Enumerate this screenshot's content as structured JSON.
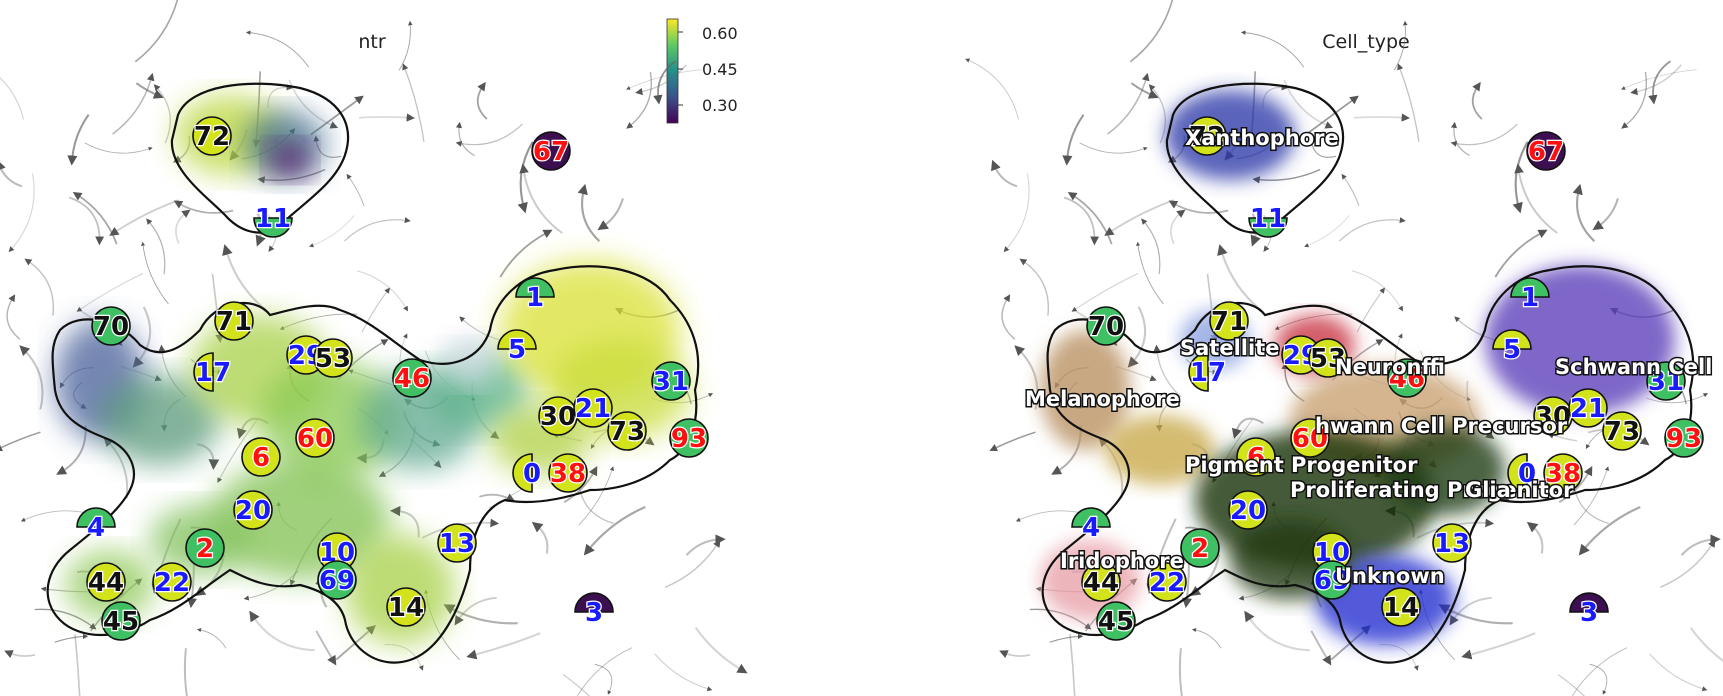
{
  "chart_data": [
    {
      "type": "scatter",
      "title": "ntr",
      "colorbar": {
        "ticks": [
          "0.60",
          "0.45",
          "0.30"
        ],
        "range": [
          0.25,
          0.63
        ]
      },
      "clusters": [
        {
          "id": "72",
          "ntr": 0.62
        },
        {
          "id": "11",
          "ntr": 0.45
        },
        {
          "id": "67",
          "ntr": 0.28
        },
        {
          "id": "1",
          "ntr": 0.45
        },
        {
          "id": "70",
          "ntr": 0.45
        },
        {
          "id": "71",
          "ntr": 0.6
        },
        {
          "id": "17",
          "ntr": 0.6
        },
        {
          "id": "29",
          "ntr": 0.45
        },
        {
          "id": "53",
          "ntr": 0.62
        },
        {
          "id": "46",
          "ntr": 0.45
        },
        {
          "id": "5",
          "ntr": 0.6
        },
        {
          "id": "31",
          "ntr": 0.45
        },
        {
          "id": "30",
          "ntr": 0.62
        },
        {
          "id": "21",
          "ntr": 0.6
        },
        {
          "id": "73",
          "ntr": 0.6
        },
        {
          "id": "93",
          "ntr": 0.45
        },
        {
          "id": "60",
          "ntr": 0.6
        },
        {
          "id": "6",
          "ntr": 0.6
        },
        {
          "id": "0",
          "ntr": 0.6
        },
        {
          "id": "38",
          "ntr": 0.62
        },
        {
          "id": "4",
          "ntr": 0.45
        },
        {
          "id": "20",
          "ntr": 0.6
        },
        {
          "id": "2",
          "ntr": 0.55
        },
        {
          "id": "10",
          "ntr": 0.6
        },
        {
          "id": "69",
          "ntr": 0.5
        },
        {
          "id": "13",
          "ntr": 0.6
        },
        {
          "id": "44",
          "ntr": 0.62
        },
        {
          "id": "22",
          "ntr": 0.6
        },
        {
          "id": "45",
          "ntr": 0.5
        },
        {
          "id": "14",
          "ntr": 0.62
        },
        {
          "id": "3",
          "ntr": 0.28
        }
      ]
    },
    {
      "type": "scatter",
      "title": "Cell_type",
      "cell_types": [
        {
          "name": "Xanthophore",
          "color": "#2b3aa8"
        },
        {
          "name": "Satellite",
          "color": "#8aa0e0"
        },
        {
          "name": "Neuron",
          "color": "#c83040"
        },
        {
          "name": "Schwann Cell",
          "color": "#5a3cb8"
        },
        {
          "name": "Melanophore",
          "color": "#b89060"
        },
        {
          "name": "Schwann Cell Precursor",
          "color": "#c8a070"
        },
        {
          "name": "Pigment Progenitor",
          "color": "#c8a848"
        },
        {
          "name": "Proliferating Progenitor",
          "color": "#0e2a08"
        },
        {
          "name": "Glia",
          "color": "#1a3810"
        },
        {
          "name": "Iridophore",
          "color": "#e8a0a8"
        },
        {
          "name": "Unknown",
          "color": "#1e2ed0"
        }
      ],
      "overlay_texts": [
        "Xanthophore",
        "Satellite",
        "Neuronffi",
        "Schwann Cell",
        "Melanophore",
        "hwann Cell Precursor",
        "Pigment Progenitor",
        "Proliferating Progenitor",
        "Glia",
        "Iridophore",
        "Unknown"
      ],
      "clusters": [
        "72",
        "11",
        "67",
        "1",
        "70",
        "71",
        "17",
        "29",
        "53",
        "46",
        "5",
        "31",
        "30",
        "21",
        "73",
        "93",
        "60",
        "6",
        "0",
        "38",
        "4",
        "20",
        "2",
        "10",
        "69",
        "13",
        "44",
        "22",
        "45",
        "14",
        "3"
      ]
    }
  ],
  "colors": {
    "label_red": "#ff1010",
    "label_blue": "#1a1aff",
    "label_black": "#111111",
    "marker_yellow": "#d2e21b",
    "marker_green": "#3ec063",
    "marker_dark": "#3b0f50"
  }
}
